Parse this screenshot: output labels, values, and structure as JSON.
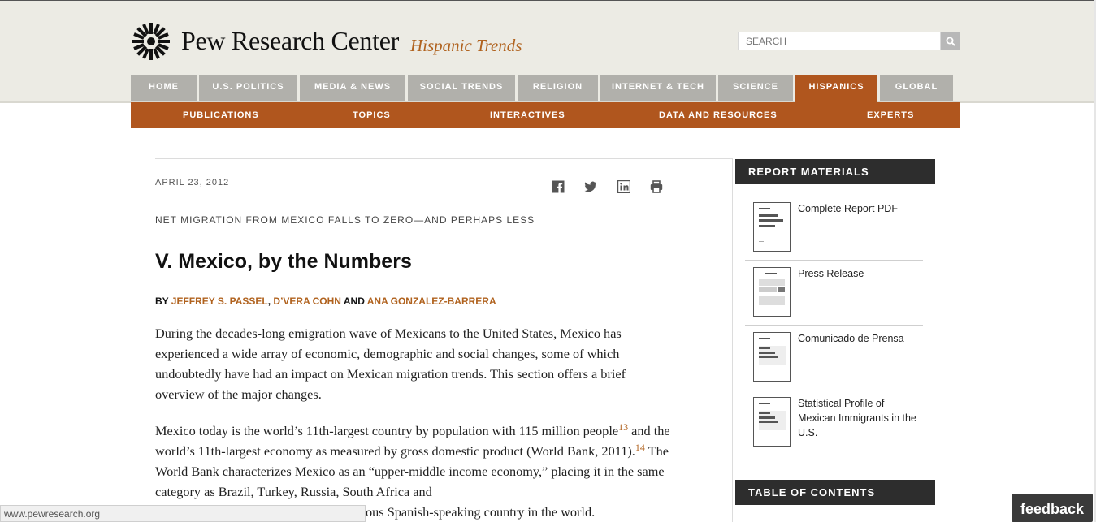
{
  "brand": {
    "name": "Pew Research Center",
    "section": "Hispanic Trends"
  },
  "search": {
    "placeholder": "SEARCH"
  },
  "nav": {
    "items": [
      "HOME",
      "U.S. POLITICS",
      "MEDIA & NEWS",
      "SOCIAL TRENDS",
      "RELIGION",
      "INTERNET & TECH",
      "SCIENCE",
      "HISPANICS",
      "GLOBAL"
    ],
    "active": "HISPANICS"
  },
  "subnav": {
    "items": [
      "PUBLICATIONS",
      "TOPICS",
      "INTERACTIVES",
      "DATA AND RESOURCES",
      "EXPERTS"
    ]
  },
  "article": {
    "date": "APRIL 23, 2012",
    "kicker": "NET MIGRATION FROM MEXICO FALLS TO ZERO—AND PERHAPS LESS",
    "title": "V. Mexico, by the Numbers",
    "by": "BY",
    "author1": "JEFFREY S. PASSEL",
    "comma": ",",
    "author2": "D’VERA COHN",
    "and": "AND",
    "author3": "ANA GONZALEZ-BARRERA",
    "p1": "During the decades-long emigration wave of Mexicans to the United States, Mexico has experienced a wide array of economic, demographic and social changes, some of which undoubtedly have had an impact on Mexican migration trends. This section offers a brief overview of the major changes.",
    "p2_a": "Mexico today is the world’s 11th-largest country by population with 115 million people",
    "fn1": "13",
    "p2_b": " and the world’s 11th-largest economy as measured by gross domestic product (World Bank, 2011).",
    "fn2": "14",
    "p2_c": " The World Bank characterizes Mexico as an “upper-middle income economy,” placing it in the same category as Brazil, Turkey, Russia, South Africa and",
    "p2_d": "ous Spanish-speaking country in the world."
  },
  "share": {
    "icons": [
      "facebook-icon",
      "twitter-icon",
      "linkedin-icon",
      "print-icon"
    ]
  },
  "sidebar": {
    "report_heading": "REPORT MATERIALS",
    "materials": [
      "Complete Report PDF",
      "Press Release",
      "Comunicado de Prensa",
      "Statistical Profile of Mexican Immigrants in the U.S."
    ],
    "toc_heading": "TABLE OF CONTENTS"
  },
  "status": {
    "url": "www.pewresearch.org"
  },
  "feedback": {
    "label": "feedback"
  },
  "colors": {
    "accent": "#b0561e",
    "nav_gray": "#b1b0ab",
    "header_bg": "#ecebe4",
    "sidebar_dark": "#2d2d2d"
  }
}
